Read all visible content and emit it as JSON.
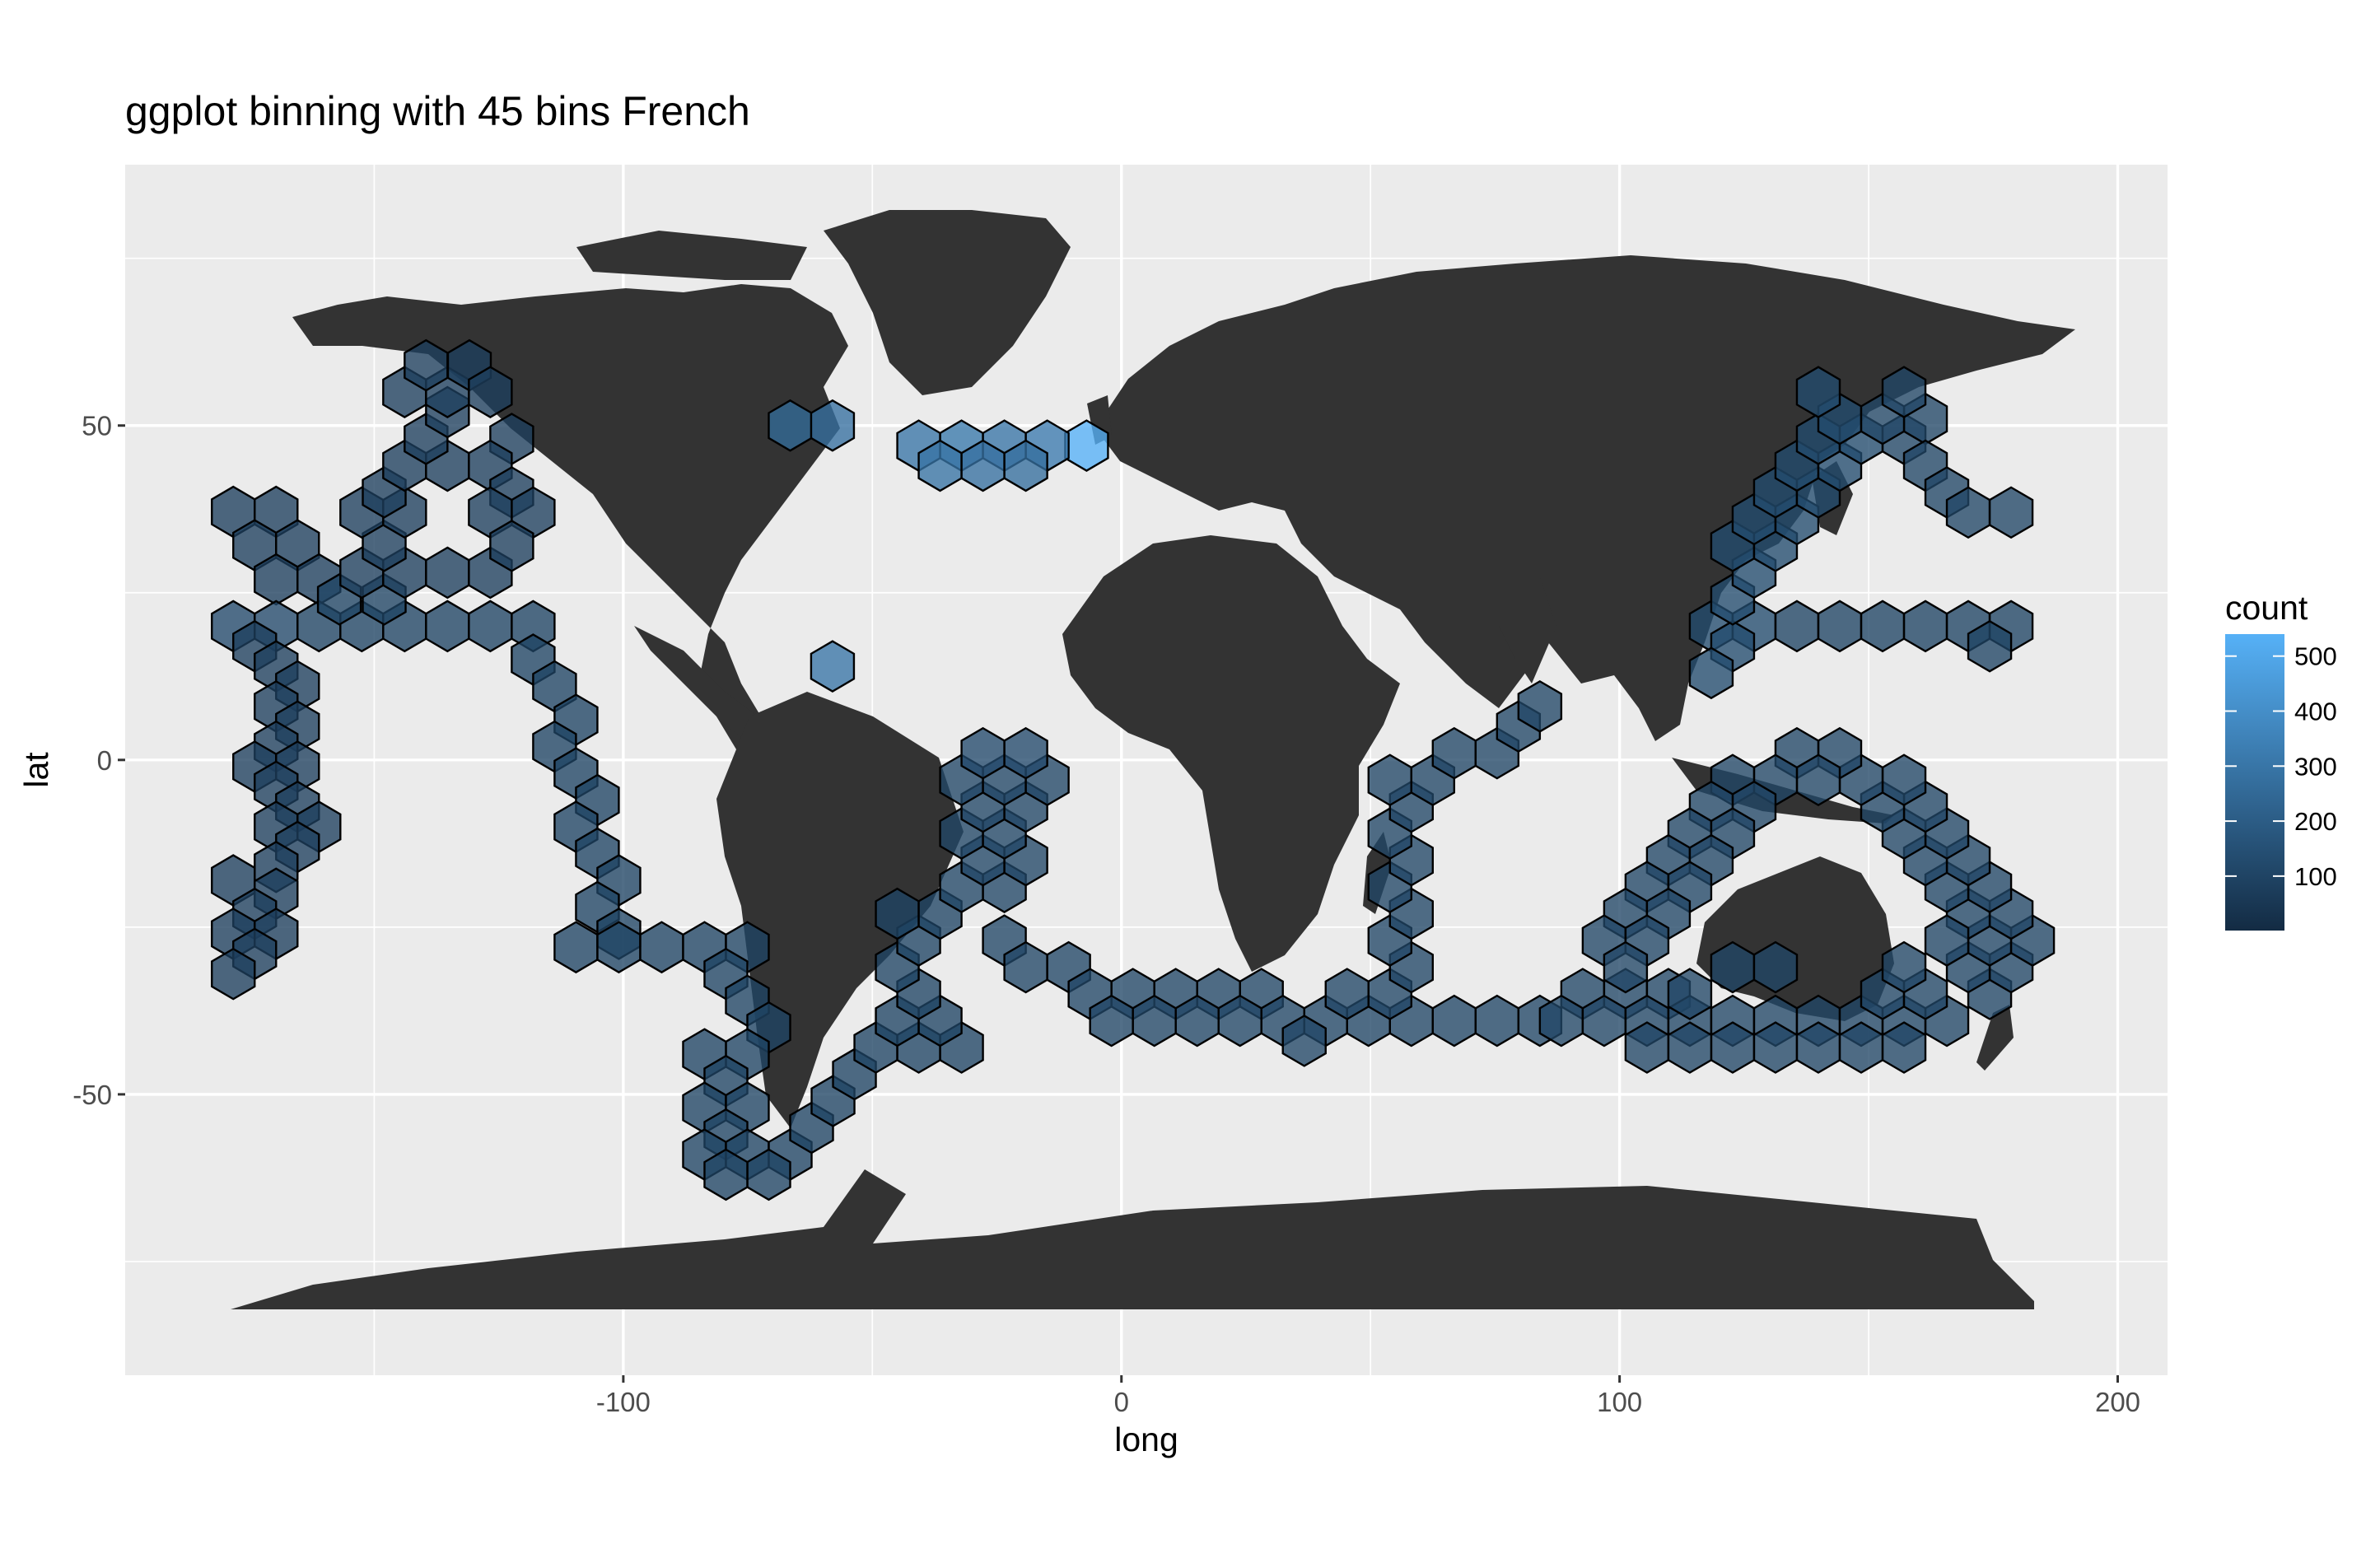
{
  "chart_data": {
    "type": "heatmap",
    "subtype": "hexbin over world map",
    "title": "ggplot binning with 45 bins French",
    "xlabel": "long",
    "ylabel": "lat",
    "xlim": [
      -200,
      210
    ],
    "ylim": [
      -92,
      89
    ],
    "x_ticks": [
      -100,
      0,
      100,
      200
    ],
    "x_tick_labels": [
      "-100",
      "0",
      "100",
      "200"
    ],
    "y_ticks": [
      -50,
      0,
      50
    ],
    "y_tick_labels": [
      "-50",
      "0",
      "50"
    ],
    "grid": true,
    "background": "#ebebeb",
    "land_color": "#333333",
    "legend": {
      "title": "count",
      "position": "right",
      "breaks": [
        100,
        200,
        300,
        400,
        500
      ],
      "labels": [
        "100",
        "200",
        "300",
        "400",
        "500"
      ],
      "range": [
        1,
        540
      ],
      "low_color": "#132b43",
      "high_color": "#56b1f7"
    },
    "hex_size_deg": {
      "dx": 8.6,
      "dy": 5.0
    },
    "hexbins": [
      {
        "x": -178.3,
        "y": 37.1,
        "n": 80
      },
      {
        "x": -169.7,
        "y": 37.1,
        "n": 80
      },
      {
        "x": -174.0,
        "y": 32.1,
        "n": 80
      },
      {
        "x": -165.4,
        "y": 32.1,
        "n": 80
      },
      {
        "x": -169.7,
        "y": 27.0,
        "n": 80
      },
      {
        "x": -161.1,
        "y": 27.0,
        "n": 80
      },
      {
        "x": -178.3,
        "y": 20.0,
        "n": 120
      },
      {
        "x": -169.7,
        "y": 20.0,
        "n": 120
      },
      {
        "x": -161.1,
        "y": 20.0,
        "n": 100
      },
      {
        "x": -152.5,
        "y": 20.0,
        "n": 100
      },
      {
        "x": -143.9,
        "y": 20.0,
        "n": 100
      },
      {
        "x": -135.3,
        "y": 20.0,
        "n": 100
      },
      {
        "x": -126.7,
        "y": 20.0,
        "n": 100
      },
      {
        "x": -118.1,
        "y": 20.0,
        "n": 100
      },
      {
        "x": -174.0,
        "y": 17.0,
        "n": 80
      },
      {
        "x": -169.7,
        "y": 14.0,
        "n": 80
      },
      {
        "x": -165.4,
        "y": 11.0,
        "n": 80
      },
      {
        "x": -169.7,
        "y": 8.0,
        "n": 80
      },
      {
        "x": -165.4,
        "y": 5.0,
        "n": 80
      },
      {
        "x": -169.7,
        "y": 2.0,
        "n": 80
      },
      {
        "x": -174.0,
        "y": -1.0,
        "n": 80
      },
      {
        "x": -165.4,
        "y": -1.0,
        "n": 80
      },
      {
        "x": -169.7,
        "y": -4.0,
        "n": 80
      },
      {
        "x": -165.4,
        "y": -7.0,
        "n": 80
      },
      {
        "x": -169.7,
        "y": -10.0,
        "n": 80
      },
      {
        "x": -161.1,
        "y": -10.0,
        "n": 80
      },
      {
        "x": -165.4,
        "y": -13.0,
        "n": 80
      },
      {
        "x": -169.7,
        "y": -16.0,
        "n": 80
      },
      {
        "x": -178.3,
        "y": -18.0,
        "n": 80
      },
      {
        "x": -169.7,
        "y": -20.0,
        "n": 80
      },
      {
        "x": -174.0,
        "y": -23.0,
        "n": 80
      },
      {
        "x": -178.3,
        "y": -26.0,
        "n": 80
      },
      {
        "x": -169.7,
        "y": -26.0,
        "n": 80
      },
      {
        "x": -174.0,
        "y": -29.0,
        "n": 80
      },
      {
        "x": -178.3,
        "y": -32.0,
        "n": 80
      },
      {
        "x": -157.0,
        "y": 24.0,
        "n": 100
      },
      {
        "x": -148.0,
        "y": 24.0,
        "n": 100
      },
      {
        "x": -152.5,
        "y": 28.0,
        "n": 80
      },
      {
        "x": -143.9,
        "y": 28.0,
        "n": 80
      },
      {
        "x": -135.3,
        "y": 28.0,
        "n": 80
      },
      {
        "x": -126.7,
        "y": 28.0,
        "n": 80
      },
      {
        "x": -148.0,
        "y": 32.0,
        "n": 80
      },
      {
        "x": -152.5,
        "y": 37.0,
        "n": 80
      },
      {
        "x": -143.9,
        "y": 37.0,
        "n": 80
      },
      {
        "x": -148.0,
        "y": 40.0,
        "n": 80
      },
      {
        "x": -143.9,
        "y": 44.0,
        "n": 80
      },
      {
        "x": -135.3,
        "y": 44.0,
        "n": 80
      },
      {
        "x": -139.6,
        "y": 48.0,
        "n": 80
      },
      {
        "x": -135.3,
        "y": 52.0,
        "n": 80
      },
      {
        "x": -143.9,
        "y": 55.0,
        "n": 80
      },
      {
        "x": -135.3,
        "y": 55.0,
        "n": 80
      },
      {
        "x": -139.6,
        "y": 59.0,
        "n": 80
      },
      {
        "x": -130.9,
        "y": 59.0,
        "n": 80
      },
      {
        "x": -126.7,
        "y": 55.0,
        "n": 80
      },
      {
        "x": -122.4,
        "y": 48.0,
        "n": 80
      },
      {
        "x": -126.7,
        "y": 44.0,
        "n": 80
      },
      {
        "x": -122.4,
        "y": 40.0,
        "n": 80
      },
      {
        "x": -118.1,
        "y": 37.0,
        "n": 80
      },
      {
        "x": -126.7,
        "y": 37.0,
        "n": 80
      },
      {
        "x": -122.4,
        "y": 32.0,
        "n": 80
      },
      {
        "x": -118.1,
        "y": 15.0,
        "n": 100
      },
      {
        "x": -113.8,
        "y": 11.0,
        "n": 100
      },
      {
        "x": -109.5,
        "y": 6.0,
        "n": 100
      },
      {
        "x": -113.8,
        "y": 2.0,
        "n": 100
      },
      {
        "x": -109.5,
        "y": -2.0,
        "n": 100
      },
      {
        "x": -105.2,
        "y": -6.0,
        "n": 100
      },
      {
        "x": -109.5,
        "y": -10.0,
        "n": 100
      },
      {
        "x": -105.2,
        "y": -14.0,
        "n": 100
      },
      {
        "x": -100.9,
        "y": -18.0,
        "n": 100
      },
      {
        "x": -105.2,
        "y": -22.0,
        "n": 100
      },
      {
        "x": -100.9,
        "y": -26.0,
        "n": 100
      },
      {
        "x": -109.5,
        "y": -28.0,
        "n": 100
      },
      {
        "x": -100.9,
        "y": -28.0,
        "n": 100
      },
      {
        "x": -92.3,
        "y": -28.0,
        "n": 100
      },
      {
        "x": -83.7,
        "y": -28.0,
        "n": 100
      },
      {
        "x": -75.1,
        "y": -28.0,
        "n": 100
      },
      {
        "x": -79.4,
        "y": -32.0,
        "n": 100
      },
      {
        "x": -75.1,
        "y": -36.0,
        "n": 100
      },
      {
        "x": -70.8,
        "y": -40.0,
        "n": 100
      },
      {
        "x": -75.1,
        "y": -44.0,
        "n": 100
      },
      {
        "x": -83.7,
        "y": -44.0,
        "n": 100
      },
      {
        "x": -79.4,
        "y": -48.0,
        "n": 100
      },
      {
        "x": -83.7,
        "y": -52.0,
        "n": 100
      },
      {
        "x": -75.1,
        "y": -52.0,
        "n": 100
      },
      {
        "x": -79.4,
        "y": -56.0,
        "n": 100
      },
      {
        "x": -83.7,
        "y": -59.0,
        "n": 100
      },
      {
        "x": -75.1,
        "y": -59.0,
        "n": 100
      },
      {
        "x": -66.5,
        "y": -59.0,
        "n": 100
      },
      {
        "x": -70.8,
        "y": -62.0,
        "n": 100
      },
      {
        "x": -79.4,
        "y": -62.0,
        "n": 100
      },
      {
        "x": -62.2,
        "y": -55.0,
        "n": 100
      },
      {
        "x": -57.9,
        "y": -51.0,
        "n": 100
      },
      {
        "x": -53.6,
        "y": -47.0,
        "n": 100
      },
      {
        "x": -49.3,
        "y": -43.0,
        "n": 100
      },
      {
        "x": -40.7,
        "y": -43.0,
        "n": 100
      },
      {
        "x": -32.1,
        "y": -43.0,
        "n": 100
      },
      {
        "x": -45.0,
        "y": -39.0,
        "n": 100
      },
      {
        "x": -36.4,
        "y": -39.0,
        "n": 100
      },
      {
        "x": -40.7,
        "y": -35.0,
        "n": 100
      },
      {
        "x": -45.0,
        "y": -31.0,
        "n": 100
      },
      {
        "x": -40.7,
        "y": -27.0,
        "n": 100
      },
      {
        "x": -45.0,
        "y": -23.0,
        "n": 100
      },
      {
        "x": -36.4,
        "y": -23.0,
        "n": 100
      },
      {
        "x": -32.1,
        "y": -19.0,
        "n": 110
      },
      {
        "x": -23.5,
        "y": -19.0,
        "n": 110
      },
      {
        "x": -27.8,
        "y": -15.0,
        "n": 110
      },
      {
        "x": -19.2,
        "y": -15.0,
        "n": 110
      },
      {
        "x": -32.1,
        "y": -11.0,
        "n": 110
      },
      {
        "x": -23.5,
        "y": -11.0,
        "n": 110
      },
      {
        "x": -27.8,
        "y": -7.0,
        "n": 110
      },
      {
        "x": -19.2,
        "y": -7.0,
        "n": 110
      },
      {
        "x": -32.1,
        "y": -3.0,
        "n": 110
      },
      {
        "x": -23.5,
        "y": -3.0,
        "n": 110
      },
      {
        "x": -14.9,
        "y": -3.0,
        "n": 110
      },
      {
        "x": -27.8,
        "y": 1.0,
        "n": 120
      },
      {
        "x": -19.2,
        "y": 1.0,
        "n": 120
      },
      {
        "x": -23.5,
        "y": -27.0,
        "n": 110
      },
      {
        "x": -19.2,
        "y": -31.0,
        "n": 110
      },
      {
        "x": -10.6,
        "y": -31.0,
        "n": 110
      },
      {
        "x": -6.3,
        "y": -35.0,
        "n": 110
      },
      {
        "x": 2.3,
        "y": -35.0,
        "n": 110
      },
      {
        "x": 10.9,
        "y": -35.0,
        "n": 110
      },
      {
        "x": 19.5,
        "y": -35.0,
        "n": 110
      },
      {
        "x": 28.1,
        "y": -35.0,
        "n": 110
      },
      {
        "x": -2.0,
        "y": -39.0,
        "n": 110
      },
      {
        "x": 6.6,
        "y": -39.0,
        "n": 110
      },
      {
        "x": 15.2,
        "y": -39.0,
        "n": 110
      },
      {
        "x": 23.8,
        "y": -39.0,
        "n": 110
      },
      {
        "x": 32.4,
        "y": -39.0,
        "n": 110
      },
      {
        "x": 41.0,
        "y": -39.0,
        "n": 110
      },
      {
        "x": 49.6,
        "y": -39.0,
        "n": 110
      },
      {
        "x": 58.2,
        "y": -39.0,
        "n": 110
      },
      {
        "x": 66.8,
        "y": -39.0,
        "n": 110
      },
      {
        "x": 75.4,
        "y": -39.0,
        "n": 110
      },
      {
        "x": 84.0,
        "y": -39.0,
        "n": 110
      },
      {
        "x": 36.7,
        "y": -42.0,
        "n": 110
      },
      {
        "x": 45.3,
        "y": -35.0,
        "n": 110
      },
      {
        "x": 53.9,
        "y": -35.0,
        "n": 110
      },
      {
        "x": 58.2,
        "y": -31.0,
        "n": 110
      },
      {
        "x": 53.9,
        "y": -27.0,
        "n": 110
      },
      {
        "x": 58.2,
        "y": -23.0,
        "n": 110
      },
      {
        "x": 53.9,
        "y": -19.0,
        "n": 110
      },
      {
        "x": 58.2,
        "y": -15.0,
        "n": 110
      },
      {
        "x": 53.9,
        "y": -11.0,
        "n": 110
      },
      {
        "x": 58.2,
        "y": -7.0,
        "n": 110
      },
      {
        "x": 53.9,
        "y": -3.0,
        "n": 110
      },
      {
        "x": 62.5,
        "y": -3.0,
        "n": 110
      },
      {
        "x": 66.8,
        "y": 1.0,
        "n": 110
      },
      {
        "x": 75.4,
        "y": 1.0,
        "n": 110
      },
      {
        "x": 79.7,
        "y": 5.0,
        "n": 110
      },
      {
        "x": 84.0,
        "y": 8.0,
        "n": 110
      },
      {
        "x": 92.6,
        "y": -35.0,
        "n": 110
      },
      {
        "x": 101.2,
        "y": -35.0,
        "n": 110
      },
      {
        "x": 109.8,
        "y": -35.0,
        "n": 110
      },
      {
        "x": 88.3,
        "y": -39.0,
        "n": 110
      },
      {
        "x": 96.9,
        "y": -39.0,
        "n": 110
      },
      {
        "x": 105.5,
        "y": -39.0,
        "n": 110
      },
      {
        "x": 114.1,
        "y": -39.0,
        "n": 110
      },
      {
        "x": 122.7,
        "y": -39.0,
        "n": 110
      },
      {
        "x": 131.3,
        "y": -39.0,
        "n": 110
      },
      {
        "x": 139.9,
        "y": -39.0,
        "n": 110
      },
      {
        "x": 148.5,
        "y": -39.0,
        "n": 110
      },
      {
        "x": 157.1,
        "y": -39.0,
        "n": 110
      },
      {
        "x": 165.7,
        "y": -39.0,
        "n": 110
      },
      {
        "x": 174.3,
        "y": -35.0,
        "n": 110
      },
      {
        "x": 178.6,
        "y": -31.0,
        "n": 110
      },
      {
        "x": 170.0,
        "y": -31.0,
        "n": 110
      },
      {
        "x": 174.3,
        "y": -27.0,
        "n": 110
      },
      {
        "x": 182.9,
        "y": -27.0,
        "n": 110
      },
      {
        "x": 178.6,
        "y": -23.0,
        "n": 110
      },
      {
        "x": 170.0,
        "y": -23.0,
        "n": 110
      },
      {
        "x": 174.3,
        "y": -19.0,
        "n": 110
      },
      {
        "x": 165.7,
        "y": -19.0,
        "n": 110
      },
      {
        "x": 170.0,
        "y": -15.0,
        "n": 110
      },
      {
        "x": 161.4,
        "y": -15.0,
        "n": 110
      },
      {
        "x": 165.7,
        "y": -11.0,
        "n": 110
      },
      {
        "x": 157.1,
        "y": -11.0,
        "n": 110
      },
      {
        "x": 161.4,
        "y": -7.0,
        "n": 110
      },
      {
        "x": 152.8,
        "y": -7.0,
        "n": 110
      },
      {
        "x": 157.1,
        "y": -3.0,
        "n": 110
      },
      {
        "x": 148.5,
        "y": -3.0,
        "n": 110
      },
      {
        "x": 144.2,
        "y": 1.0,
        "n": 110
      },
      {
        "x": 135.6,
        "y": 1.0,
        "n": 110
      },
      {
        "x": 139.9,
        "y": -3.0,
        "n": 110
      },
      {
        "x": 131.3,
        "y": -3.0,
        "n": 110
      },
      {
        "x": 122.7,
        "y": -3.0,
        "n": 110
      },
      {
        "x": 127.0,
        "y": -7.0,
        "n": 110
      },
      {
        "x": 118.4,
        "y": -7.0,
        "n": 110
      },
      {
        "x": 114.1,
        "y": -11.0,
        "n": 110
      },
      {
        "x": 122.7,
        "y": -11.0,
        "n": 110
      },
      {
        "x": 109.8,
        "y": -15.0,
        "n": 110
      },
      {
        "x": 118.4,
        "y": -15.0,
        "n": 110
      },
      {
        "x": 105.5,
        "y": -19.0,
        "n": 110
      },
      {
        "x": 114.1,
        "y": -19.0,
        "n": 110
      },
      {
        "x": 101.2,
        "y": -23.0,
        "n": 110
      },
      {
        "x": 109.8,
        "y": -23.0,
        "n": 110
      },
      {
        "x": 96.9,
        "y": -27.0,
        "n": 110
      },
      {
        "x": 105.5,
        "y": -27.0,
        "n": 110
      },
      {
        "x": 101.2,
        "y": -31.0,
        "n": 110
      },
      {
        "x": 122.7,
        "y": -43.0,
        "n": 110
      },
      {
        "x": 131.3,
        "y": -43.0,
        "n": 110
      },
      {
        "x": 139.9,
        "y": -43.0,
        "n": 110
      },
      {
        "x": 148.5,
        "y": -43.0,
        "n": 110
      },
      {
        "x": 157.1,
        "y": -43.0,
        "n": 110
      },
      {
        "x": 105.5,
        "y": -43.0,
        "n": 110
      },
      {
        "x": 114.1,
        "y": -43.0,
        "n": 110
      },
      {
        "x": 122.7,
        "y": -31.0,
        "n": 110
      },
      {
        "x": 131.3,
        "y": -31.0,
        "n": 110
      },
      {
        "x": 152.8,
        "y": -35.0,
        "n": 110
      },
      {
        "x": 161.4,
        "y": -35.0,
        "n": 110
      },
      {
        "x": 157.1,
        "y": -31.0,
        "n": 110
      },
      {
        "x": 165.7,
        "y": -27.0,
        "n": 110
      },
      {
        "x": 118.4,
        "y": 20.0,
        "n": 130
      },
      {
        "x": 127.0,
        "y": 20.0,
        "n": 130
      },
      {
        "x": 135.6,
        "y": 20.0,
        "n": 100
      },
      {
        "x": 144.2,
        "y": 20.0,
        "n": 100
      },
      {
        "x": 152.8,
        "y": 20.0,
        "n": 100
      },
      {
        "x": 161.4,
        "y": 20.0,
        "n": 100
      },
      {
        "x": 170.0,
        "y": 20.0,
        "n": 100
      },
      {
        "x": 178.6,
        "y": 20.0,
        "n": 100
      },
      {
        "x": 174.3,
        "y": 17.0,
        "n": 100
      },
      {
        "x": 122.7,
        "y": 17.0,
        "n": 130
      },
      {
        "x": 122.7,
        "y": 24.0,
        "n": 130
      },
      {
        "x": 127.0,
        "y": 28.0,
        "n": 130
      },
      {
        "x": 122.7,
        "y": 32.0,
        "n": 130
      },
      {
        "x": 131.3,
        "y": 32.0,
        "n": 130
      },
      {
        "x": 127.0,
        "y": 36.0,
        "n": 130
      },
      {
        "x": 135.6,
        "y": 36.0,
        "n": 130
      },
      {
        "x": 131.3,
        "y": 40.0,
        "n": 130
      },
      {
        "x": 139.9,
        "y": 40.0,
        "n": 130
      },
      {
        "x": 135.6,
        "y": 44.0,
        "n": 130
      },
      {
        "x": 144.2,
        "y": 44.0,
        "n": 130
      },
      {
        "x": 139.9,
        "y": 48.0,
        "n": 130
      },
      {
        "x": 148.5,
        "y": 48.0,
        "n": 130
      },
      {
        "x": 144.2,
        "y": 51.0,
        "n": 130
      },
      {
        "x": 139.9,
        "y": 55.0,
        "n": 130
      },
      {
        "x": 157.1,
        "y": 48.0,
        "n": 110
      },
      {
        "x": 161.4,
        "y": 51.0,
        "n": 110
      },
      {
        "x": 152.8,
        "y": 51.0,
        "n": 110
      },
      {
        "x": 157.1,
        "y": 55.0,
        "n": 110
      },
      {
        "x": 161.4,
        "y": 44.0,
        "n": 110
      },
      {
        "x": 165.7,
        "y": 40.0,
        "n": 110
      },
      {
        "x": 170.0,
        "y": 37.0,
        "n": 110
      },
      {
        "x": 178.6,
        "y": 37.0,
        "n": 110
      },
      {
        "x": 118.4,
        "y": 13.0,
        "n": 130
      },
      {
        "x": 114.1,
        "y": -35.0,
        "n": 110
      },
      {
        "x": -58.0,
        "y": 14.0,
        "n": 300
      },
      {
        "x": -7.0,
        "y": 47.0,
        "n": 540
      },
      {
        "x": -66.5,
        "y": 50.0,
        "n": 260
      },
      {
        "x": -58.0,
        "y": 50.0,
        "n": 280
      },
      {
        "x": -40.7,
        "y": 47.0,
        "n": 300
      },
      {
        "x": -32.1,
        "y": 47.0,
        "n": 310
      },
      {
        "x": -23.5,
        "y": 47.0,
        "n": 300
      },
      {
        "x": -14.9,
        "y": 47.0,
        "n": 320
      },
      {
        "x": -36.4,
        "y": 44.0,
        "n": 290
      },
      {
        "x": -27.8,
        "y": 44.0,
        "n": 280
      },
      {
        "x": -19.2,
        "y": 44.0,
        "n": 270
      }
    ]
  }
}
